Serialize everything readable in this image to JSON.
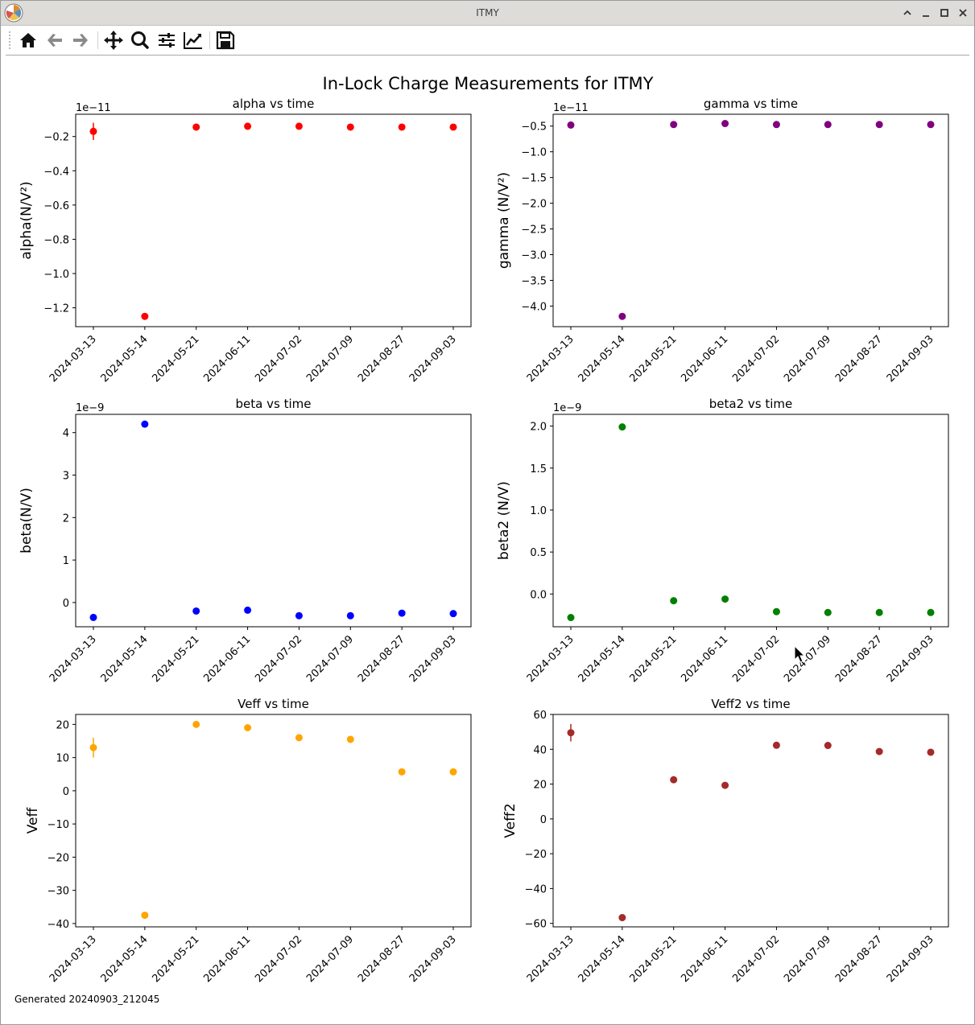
{
  "window": {
    "title": "ITMY"
  },
  "toolbar": {
    "buttons": [
      "home-icon",
      "back-icon",
      "forward-icon",
      "pan-icon",
      "zoom-icon",
      "configure-subplots-icon",
      "edit-axis-icon",
      "save-icon"
    ]
  },
  "figure": {
    "suptitle": "In-Lock Charge Measurements for ITMY",
    "footer": "Generated 20240903_212045"
  },
  "chart_data": [
    {
      "type": "scatter",
      "title": "alpha vs time",
      "ylabel": "alpha(N/V²)",
      "scale_label": "1e−11",
      "categories": [
        "2024-03-13",
        "2024-05-14",
        "2024-05-21",
        "2024-06-11",
        "2024-07-02",
        "2024-07-09",
        "2024-08-27",
        "2024-09-03"
      ],
      "values": [
        -0.17,
        -1.25,
        -0.145,
        -0.14,
        -0.14,
        -0.145,
        -0.145,
        -0.145
      ],
      "errors": [
        0.05,
        0,
        0,
        0,
        0,
        0,
        0,
        0
      ],
      "ylim": [
        -1.31,
        -0.07
      ],
      "yticks": [
        -1.2,
        -1.0,
        -0.8,
        -0.6,
        -0.4,
        -0.2
      ],
      "tick_labels": [
        "−1.2",
        "−1.0",
        "−0.8",
        "−0.6",
        "−0.4",
        "−0.2"
      ],
      "color": "#ff0000"
    },
    {
      "type": "scatter",
      "title": "gamma vs time",
      "ylabel": "gamma (N/V²)",
      "scale_label": "1e−11",
      "categories": [
        "2024-03-13",
        "2024-05-14",
        "2024-05-21",
        "2024-06-11",
        "2024-07-02",
        "2024-07-09",
        "2024-08-27",
        "2024-09-03"
      ],
      "values": [
        -0.48,
        -4.2,
        -0.47,
        -0.45,
        -0.47,
        -0.47,
        -0.47,
        -0.47
      ],
      "errors": [
        0,
        0,
        0,
        0,
        0,
        0,
        0,
        0
      ],
      "ylim": [
        -4.4,
        -0.27
      ],
      "yticks": [
        -4.0,
        -3.5,
        -3.0,
        -2.5,
        -2.0,
        -1.5,
        -1.0,
        -0.5
      ],
      "tick_labels": [
        "−4.0",
        "−3.5",
        "−3.0",
        "−2.5",
        "−2.0",
        "−1.5",
        "−1.0",
        "−0.5"
      ],
      "color": "#800080"
    },
    {
      "type": "scatter",
      "title": "beta vs time",
      "ylabel": "beta(N/V)",
      "scale_label": "1e−9",
      "categories": [
        "2024-03-13",
        "2024-05-14",
        "2024-05-21",
        "2024-06-11",
        "2024-07-02",
        "2024-07-09",
        "2024-08-27",
        "2024-09-03"
      ],
      "values": [
        -0.35,
        4.2,
        -0.2,
        -0.18,
        -0.31,
        -0.31,
        -0.25,
        -0.26
      ],
      "errors": [
        0,
        0,
        0,
        0,
        0,
        0,
        0,
        0
      ],
      "ylim": [
        -0.57,
        4.43
      ],
      "yticks": [
        0,
        1,
        2,
        3,
        4
      ],
      "tick_labels": [
        "0",
        "1",
        "2",
        "3",
        "4"
      ],
      "color": "#0000ff"
    },
    {
      "type": "scatter",
      "title": "beta2 vs time",
      "ylabel": "beta2 (N/V)",
      "scale_label": "1e−9",
      "categories": [
        "2024-03-13",
        "2024-05-14",
        "2024-05-21",
        "2024-06-11",
        "2024-07-02",
        "2024-07-09",
        "2024-08-27",
        "2024-09-03"
      ],
      "values": [
        -0.28,
        1.99,
        -0.08,
        -0.06,
        -0.21,
        -0.22,
        -0.22,
        -0.22
      ],
      "errors": [
        0,
        0,
        0,
        0,
        0,
        0,
        0,
        0
      ],
      "ylim": [
        -0.39,
        2.14
      ],
      "yticks": [
        0.0,
        0.5,
        1.0,
        1.5,
        2.0
      ],
      "tick_labels": [
        "0.0",
        "0.5",
        "1.0",
        "1.5",
        "2.0"
      ],
      "color": "#008000"
    },
    {
      "type": "scatter",
      "title": "Veff vs time",
      "ylabel": "Veff",
      "scale_label": "",
      "categories": [
        "2024-03-13",
        "2024-05-14",
        "2024-05-21",
        "2024-06-11",
        "2024-07-02",
        "2024-07-09",
        "2024-08-27",
        "2024-09-03"
      ],
      "values": [
        13,
        -37.5,
        20,
        19,
        16,
        15.5,
        5.7,
        5.7
      ],
      "errors": [
        3,
        0,
        0,
        0,
        0,
        0,
        0,
        0
      ],
      "ylim": [
        -41,
        23
      ],
      "yticks": [
        -40,
        -30,
        -20,
        -10,
        0,
        10,
        20
      ],
      "tick_labels": [
        "−40",
        "−30",
        "−20",
        "−10",
        "0",
        "10",
        "20"
      ],
      "color": "#ffa500"
    },
    {
      "type": "scatter",
      "title": "Veff2 vs time",
      "ylabel": "Veff2",
      "scale_label": "",
      "categories": [
        "2024-03-13",
        "2024-05-14",
        "2024-05-21",
        "2024-06-11",
        "2024-07-02",
        "2024-07-09",
        "2024-08-27",
        "2024-09-03"
      ],
      "values": [
        49.5,
        -56.7,
        22.5,
        19.3,
        42.3,
        42.2,
        38.7,
        38.3
      ],
      "errors": [
        5,
        0,
        0,
        0,
        0,
        0,
        0,
        0
      ],
      "ylim": [
        -62,
        60
      ],
      "yticks": [
        -60,
        -40,
        -20,
        0,
        20,
        40,
        60
      ],
      "tick_labels": [
        "−60",
        "−40",
        "−20",
        "0",
        "20",
        "40",
        "60"
      ],
      "color": "#a52a2a"
    }
  ]
}
